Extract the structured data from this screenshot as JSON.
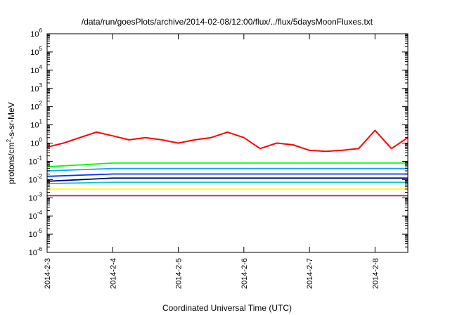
{
  "chart_data": {
    "type": "line",
    "title": "/data/run/goesPlots/archive/2014-02-08/12:00/flux/../flux/5daysMoonFluxes.txt",
    "xlabel": "Coordinated Universal Time (UTC)",
    "ylabel": "protons/cm2-s-sr-MeV",
    "ylabel_parts": {
      "pre": "protons/cm",
      "sup": "2",
      "post": "-s-sr-MeV"
    },
    "yscale": "log",
    "ylim": [
      1e-06,
      1000000.0
    ],
    "ytick_exponents": [
      -6,
      -5,
      -4,
      -3,
      -2,
      -1,
      0,
      1,
      2,
      3,
      4,
      5,
      6
    ],
    "ytick_base": "10",
    "xlim": [
      "2014-02-03",
      "2014-02-08 12:00"
    ],
    "xticks": [
      "2014-2-3",
      "2014-2-4",
      "2014-2-5",
      "2014-2-6",
      "2014-2-7",
      "2014-2-8"
    ],
    "grid": false,
    "legend": "none",
    "series": [
      {
        "color": "#ff0000",
        "x": [
          "2014-02-03 00:00",
          "2014-02-03 06:00",
          "2014-02-03 12:00",
          "2014-02-03 18:00",
          "2014-02-04 00:00",
          "2014-02-04 06:00",
          "2014-02-04 12:00",
          "2014-02-04 18:00",
          "2014-02-05 00:00",
          "2014-02-05 06:00",
          "2014-02-05 12:00",
          "2014-02-05 18:00",
          "2014-02-06 00:00",
          "2014-02-06 06:00",
          "2014-02-06 12:00",
          "2014-02-06 18:00",
          "2014-02-07 00:00",
          "2014-02-07 06:00",
          "2014-02-07 12:00",
          "2014-02-07 18:00",
          "2014-02-08 00:00",
          "2014-02-08 06:00",
          "2014-02-08 12:00"
        ],
        "values": [
          0.6,
          1.0,
          2.0,
          4.0,
          2.5,
          1.5,
          2.0,
          1.5,
          1.0,
          1.5,
          2.0,
          4.0,
          2.0,
          0.5,
          1.0,
          0.8,
          0.4,
          0.35,
          0.4,
          0.5,
          5.0,
          0.5,
          2.0
        ]
      },
      {
        "color": "#00ff00",
        "x": [
          "2014-02-03 00:00",
          "2014-02-04 00:00",
          "2014-02-05 00:00",
          "2014-02-06 00:00",
          "2014-02-07 00:00",
          "2014-02-08 00:00",
          "2014-02-08 12:00"
        ],
        "values": [
          0.05,
          0.08,
          0.08,
          0.08,
          0.08,
          0.08,
          0.08
        ]
      },
      {
        "color": "#00aaff",
        "x": [
          "2014-02-03 00:00",
          "2014-02-04 00:00",
          "2014-02-05 00:00",
          "2014-02-06 00:00",
          "2014-02-07 00:00",
          "2014-02-08 00:00",
          "2014-02-08 12:00"
        ],
        "values": [
          0.03,
          0.04,
          0.04,
          0.04,
          0.04,
          0.04,
          0.04
        ]
      },
      {
        "color": "#0033ff",
        "x": [
          "2014-02-03 00:00",
          "2014-02-04 00:00",
          "2014-02-05 00:00",
          "2014-02-06 00:00",
          "2014-02-07 00:00",
          "2014-02-08 00:00",
          "2014-02-08 12:00"
        ],
        "values": [
          0.015,
          0.02,
          0.02,
          0.02,
          0.02,
          0.02,
          0.02
        ]
      },
      {
        "color": "#000080",
        "x": [
          "2014-02-03 00:00",
          "2014-02-04 00:00",
          "2014-02-05 00:00",
          "2014-02-06 00:00",
          "2014-02-07 00:00",
          "2014-02-08 00:00",
          "2014-02-08 12:00"
        ],
        "values": [
          0.008,
          0.012,
          0.012,
          0.012,
          0.012,
          0.012,
          0.012
        ]
      },
      {
        "color": "#00cccc",
        "x": [
          "2014-02-03 00:00",
          "2014-02-04 00:00",
          "2014-02-05 00:00",
          "2014-02-06 00:00",
          "2014-02-07 00:00",
          "2014-02-08 00:00",
          "2014-02-08 12:00"
        ],
        "values": [
          0.006,
          0.007,
          0.007,
          0.007,
          0.007,
          0.007,
          0.007
        ]
      },
      {
        "color": "#ffff00",
        "x": [
          "2014-02-03 00:00",
          "2014-02-04 00:00",
          "2014-02-05 00:00",
          "2014-02-06 00:00",
          "2014-02-07 00:00",
          "2014-02-08 00:00",
          "2014-02-08 12:00"
        ],
        "values": [
          0.003,
          0.003,
          0.003,
          0.003,
          0.003,
          0.003,
          0.003
        ]
      },
      {
        "color": "#993366",
        "x": [
          "2014-02-03 00:00",
          "2014-02-04 00:00",
          "2014-02-05 00:00",
          "2014-02-06 00:00",
          "2014-02-07 00:00",
          "2014-02-08 00:00",
          "2014-02-08 12:00"
        ],
        "values": [
          0.0013,
          0.0013,
          0.0013,
          0.0013,
          0.0013,
          0.0013,
          0.0013
        ]
      }
    ]
  }
}
